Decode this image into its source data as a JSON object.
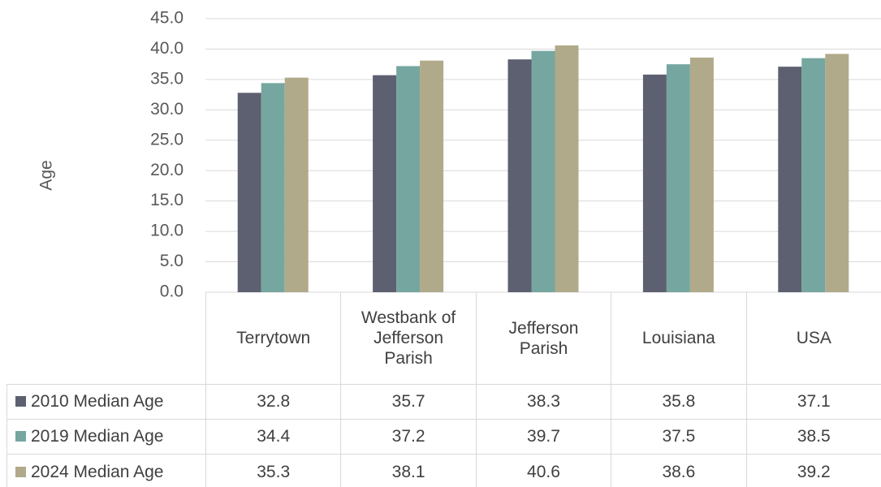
{
  "chart_data": {
    "type": "bar",
    "y_label": "Age",
    "categories": [
      "Terrytown",
      "Westbank of Jefferson Parish",
      "Jefferson Parish",
      "Louisiana",
      "USA"
    ],
    "series": [
      {
        "name": "2010 Median Age",
        "color": "#5d6070",
        "values": [
          32.8,
          35.7,
          38.3,
          35.8,
          37.1
        ]
      },
      {
        "name": "2019 Median Age",
        "color": "#76a6a0",
        "values": [
          34.4,
          37.2,
          39.7,
          37.5,
          38.5
        ]
      },
      {
        "name": "2024 Median Age",
        "color": "#b0aa8a",
        "values": [
          35.3,
          38.1,
          40.6,
          38.6,
          39.2
        ]
      }
    ],
    "ylim": [
      0,
      45
    ],
    "yticks": [
      {
        "value": 0,
        "label": "0.0"
      },
      {
        "value": 5,
        "label": "5.0"
      },
      {
        "value": 10,
        "label": "10.0"
      },
      {
        "value": 15,
        "label": "15.0"
      },
      {
        "value": 20,
        "label": "20.0"
      },
      {
        "value": 25,
        "label": "25.0"
      },
      {
        "value": 30,
        "label": "30.0"
      },
      {
        "value": 35,
        "label": "35.0"
      },
      {
        "value": 40,
        "label": "40.0"
      },
      {
        "value": 45,
        "label": "45.0"
      }
    ],
    "grid": true
  }
}
